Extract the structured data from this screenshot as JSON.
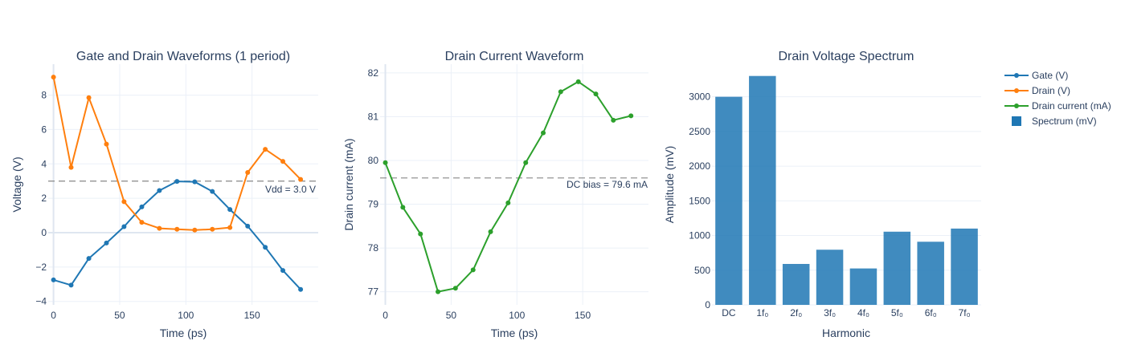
{
  "colors": {
    "gate": "#1f77b4",
    "drain": "#ff7f0e",
    "current": "#2ca02c",
    "spectrum": "#1f77b4",
    "grid": "#ebf0f8",
    "text": "#2a3f5f"
  },
  "legend": {
    "placement": "top-right",
    "items": [
      {
        "label": "Gate (V)",
        "kind": "line",
        "color": "#1f77b4"
      },
      {
        "label": "Drain (V)",
        "kind": "line",
        "color": "#ff7f0e"
      },
      {
        "label": "Drain current (mA)",
        "kind": "line",
        "color": "#2ca02c"
      },
      {
        "label": "Spectrum (mV)",
        "kind": "square",
        "color": "#1f77b4"
      }
    ]
  },
  "chart_data": [
    {
      "type": "line",
      "title": "Gate and Drain Waveforms (1 period)",
      "xlabel": "Time (ps)",
      "ylabel": "Voltage (V)",
      "xlim": [
        -4,
        200
      ],
      "ylim": [
        -4.2,
        9.8
      ],
      "xticks": [
        0,
        50,
        100,
        150
      ],
      "yticks": [
        -4,
        -2,
        0,
        2,
        4,
        6,
        8
      ],
      "x": [
        0,
        13.3,
        26.7,
        40,
        53.3,
        66.7,
        80,
        93.3,
        106.7,
        120,
        133.3,
        146.7,
        160,
        173.3,
        186.7
      ],
      "series": [
        {
          "name": "Gate (V)",
          "color": "#1f77b4",
          "values": [
            -2.75,
            -3.05,
            -1.5,
            -0.6,
            0.35,
            1.5,
            2.45,
            2.98,
            2.96,
            2.4,
            1.35,
            0.38,
            -0.85,
            -2.2,
            -3.3
          ]
        },
        {
          "name": "Drain (V)",
          "color": "#ff7f0e",
          "values": [
            9.05,
            3.8,
            7.85,
            5.15,
            1.8,
            0.6,
            0.25,
            0.2,
            0.15,
            0.2,
            0.3,
            3.5,
            4.85,
            4.15,
            3.1
          ]
        }
      ],
      "hline": {
        "y": 3.0,
        "label": "Vdd = 3.0 V"
      },
      "grid": true
    },
    {
      "type": "line",
      "title": "Drain Current Waveform",
      "xlabel": "Time (ps)",
      "ylabel": "Drain current (mA)",
      "xlim": [
        -4,
        200
      ],
      "ylim": [
        76.7,
        82.2
      ],
      "xticks": [
        0,
        50,
        100,
        150
      ],
      "yticks": [
        77,
        78,
        79,
        80,
        81,
        82
      ],
      "x": [
        0,
        13.3,
        26.7,
        40,
        53.3,
        66.7,
        80,
        93.3,
        106.7,
        120,
        133.3,
        146.7,
        160,
        173.3,
        186.7
      ],
      "series": [
        {
          "name": "Drain current (mA)",
          "color": "#2ca02c",
          "values": [
            79.95,
            78.93,
            78.32,
            77.0,
            77.08,
            77.5,
            78.37,
            79.03,
            79.95,
            80.63,
            81.57,
            81.8,
            81.52,
            80.92,
            81.02
          ]
        }
      ],
      "hline": {
        "y": 79.6,
        "label": "DC bias = 79.6 mA"
      },
      "grid": true
    },
    {
      "type": "bar",
      "title": "Drain Voltage Spectrum",
      "xlabel": "Harmonic",
      "ylabel": "Amplitude (mV)",
      "ylim": [
        0,
        3470
      ],
      "yticks": [
        0,
        500,
        1000,
        1500,
        2000,
        2500,
        3000
      ],
      "categories": [
        "DC",
        "1f₀",
        "2f₀",
        "3f₀",
        "4f₀",
        "5f₀",
        "6f₀",
        "7f₀"
      ],
      "series": [
        {
          "name": "Spectrum (mV)",
          "color": "#1f77b4",
          "values": [
            3000,
            3300,
            590,
            795,
            525,
            1055,
            910,
            1100
          ]
        }
      ],
      "grid": true
    }
  ]
}
